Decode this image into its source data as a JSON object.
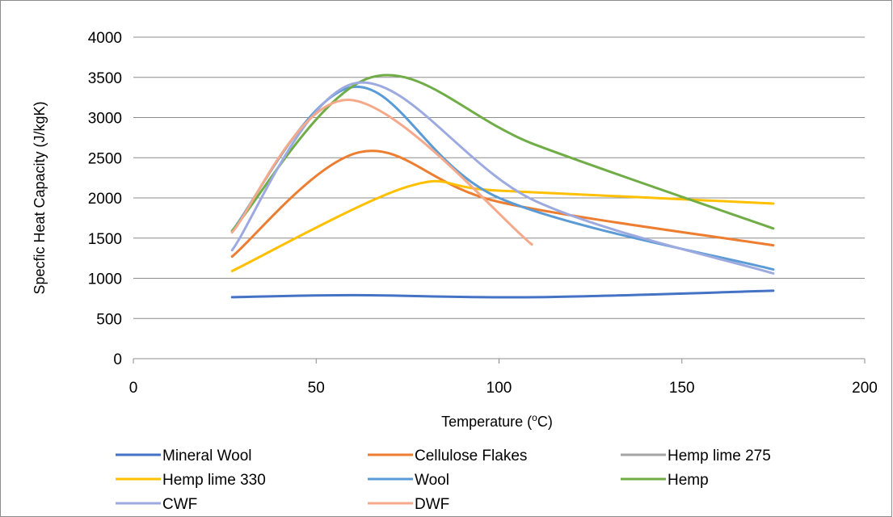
{
  "chart_data": {
    "type": "line",
    "title": "",
    "xlabel": "Temperature (",
    "xlabel_sup": "o",
    "xlabel_unit": "C)",
    "ylabel": "Specfic Heat Capacity (J/kgK)",
    "xlim": [
      0,
      200
    ],
    "ylim": [
      0,
      4000
    ],
    "xticks": [
      "0",
      "50",
      "100",
      "150",
      "200"
    ],
    "yticks": [
      "0",
      "500",
      "1000",
      "1500",
      "2000",
      "2500",
      "3000",
      "3500",
      "4000"
    ],
    "grid": "horizontal",
    "legend_position": "bottom",
    "series": [
      {
        "name": "Mineral Wool",
        "color": "#4472C4",
        "points": [
          [
            27,
            765
          ],
          [
            60,
            790
          ],
          [
            110,
            765
          ],
          [
            175,
            845
          ]
        ]
      },
      {
        "name": "Cellulose Flakes",
        "color": "#ED7D31",
        "points": [
          [
            27,
            1270
          ],
          [
            62,
            2570
          ],
          [
            100,
            1950
          ],
          [
            175,
            1410
          ]
        ]
      },
      {
        "name": "Hemp lime 275",
        "color": "#A5A5A5",
        "points": []
      },
      {
        "name": "Hemp lime 330",
        "color": "#FFC000",
        "points": [
          [
            27,
            1090
          ],
          [
            75,
            2140
          ],
          [
            100,
            2090
          ],
          [
            175,
            1930
          ]
        ]
      },
      {
        "name": "Wool",
        "color": "#5B9BD5",
        "points": [
          [
            27,
            1590
          ],
          [
            60,
            3380
          ],
          [
            100,
            2000
          ],
          [
            175,
            1110
          ]
        ]
      },
      {
        "name": "Hemp",
        "color": "#70AD47",
        "points": [
          [
            27,
            1590
          ],
          [
            65,
            3500
          ],
          [
            110,
            2660
          ],
          [
            175,
            1620
          ]
        ]
      },
      {
        "name": "CWF",
        "color": "#9DAAE0",
        "points": [
          [
            27,
            1350
          ],
          [
            61,
            3430
          ],
          [
            110,
            1960
          ],
          [
            175,
            1060
          ]
        ]
      },
      {
        "name": "DWF",
        "color": "#F4A98A",
        "points": [
          [
            27,
            1570
          ],
          [
            59,
            3220
          ],
          [
            109,
            1420
          ]
        ]
      }
    ]
  }
}
